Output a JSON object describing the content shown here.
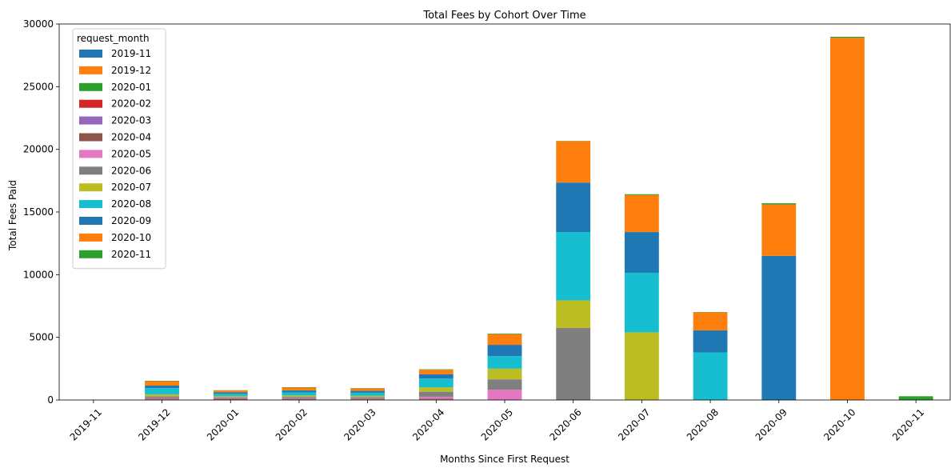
{
  "chart_data": {
    "type": "bar",
    "stacked": true,
    "title": "Total Fees by Cohort Over Time",
    "xlabel": "Months Since First Request",
    "ylabel": "Total Fees Paid",
    "ylim": [
      0,
      30000
    ],
    "yticks": [
      0,
      5000,
      10000,
      15000,
      20000,
      25000,
      30000
    ],
    "grid": false,
    "legend": {
      "title": "request_month",
      "placement": "top-left"
    },
    "categories": [
      "2019-11",
      "2019-12",
      "2020-01",
      "2020-02",
      "2020-03",
      "2020-04",
      "2020-05",
      "2020-06",
      "2020-07",
      "2020-08",
      "2020-09",
      "2020-10",
      "2020-11"
    ],
    "series": [
      {
        "name": "2019-11",
        "color": "#1f77b4",
        "values": [
          15,
          10,
          10,
          10,
          10,
          10,
          0,
          0,
          0,
          0,
          0,
          0,
          0
        ]
      },
      {
        "name": "2019-12",
        "color": "#ff7f0e",
        "values": [
          0,
          20,
          10,
          10,
          10,
          10,
          0,
          0,
          0,
          0,
          0,
          0,
          0
        ]
      },
      {
        "name": "2020-01",
        "color": "#2ca02c",
        "values": [
          0,
          20,
          20,
          10,
          10,
          10,
          0,
          0,
          0,
          0,
          0,
          0,
          0
        ]
      },
      {
        "name": "2020-02",
        "color": "#d62728",
        "values": [
          0,
          30,
          20,
          20,
          10,
          10,
          0,
          0,
          0,
          0,
          0,
          0,
          0
        ]
      },
      {
        "name": "2020-03",
        "color": "#9467bd",
        "values": [
          0,
          30,
          30,
          30,
          20,
          10,
          0,
          0,
          0,
          0,
          0,
          0,
          0
        ]
      },
      {
        "name": "2020-04",
        "color": "#8c564b",
        "values": [
          0,
          70,
          50,
          60,
          50,
          60,
          0,
          0,
          0,
          0,
          0,
          0,
          0
        ]
      },
      {
        "name": "2020-05",
        "color": "#e377c2",
        "values": [
          0,
          40,
          30,
          40,
          40,
          150,
          820,
          0,
          0,
          0,
          0,
          0,
          0
        ]
      },
      {
        "name": "2020-06",
        "color": "#7f7f7f",
        "values": [
          0,
          80,
          60,
          80,
          80,
          400,
          830,
          5750,
          0,
          0,
          0,
          0,
          0
        ]
      },
      {
        "name": "2020-07",
        "color": "#bcbd22",
        "values": [
          0,
          150,
          80,
          100,
          100,
          350,
          850,
          2200,
          5400,
          0,
          0,
          0,
          0
        ]
      },
      {
        "name": "2020-08",
        "color": "#17becf",
        "values": [
          0,
          500,
          180,
          250,
          250,
          700,
          1000,
          5450,
          4750,
          3800,
          0,
          0,
          0
        ]
      },
      {
        "name": "2020-09",
        "color": "#1f77b4",
        "values": [
          0,
          200,
          120,
          150,
          150,
          350,
          900,
          3950,
          3250,
          1750,
          11500,
          0,
          0
        ]
      },
      {
        "name": "2020-10",
        "color": "#ff7f0e",
        "values": [
          0,
          350,
          150,
          230,
          200,
          350,
          850,
          3300,
          2950,
          1450,
          4100,
          28900,
          0
        ]
      },
      {
        "name": "2020-11",
        "color": "#2ca02c",
        "values": [
          0,
          30,
          20,
          30,
          20,
          40,
          50,
          20,
          70,
          20,
          100,
          80,
          300
        ]
      }
    ]
  }
}
